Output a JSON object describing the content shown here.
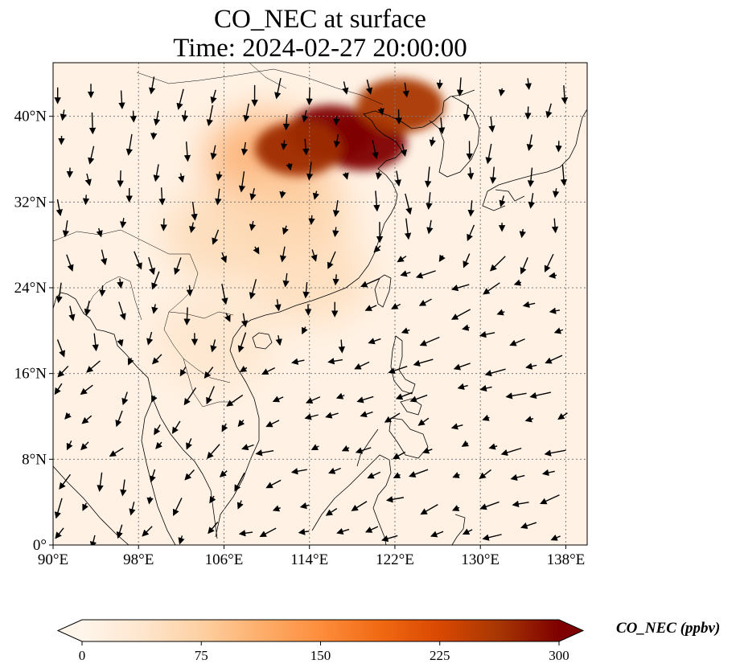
{
  "title": {
    "line1": "CO_NEC at surface",
    "line2": "Time: 2024-02-27 20:00:00"
  },
  "map": {
    "lon_range": [
      90,
      140
    ],
    "lat_range": [
      0,
      45
    ],
    "lon_ticks": [
      {
        "value": 90,
        "label": "90°E"
      },
      {
        "value": 98,
        "label": "98°E"
      },
      {
        "value": 106,
        "label": "106°E"
      },
      {
        "value": 114,
        "label": "114°E"
      },
      {
        "value": 122,
        "label": "122°E"
      },
      {
        "value": 130,
        "label": "130°E"
      },
      {
        "value": 138,
        "label": "138°E"
      }
    ],
    "lat_ticks": [
      {
        "value": 0,
        "label": "0°"
      },
      {
        "value": 8,
        "label": "8°N"
      },
      {
        "value": 16,
        "label": "16°N"
      },
      {
        "value": 24,
        "label": "24°N"
      },
      {
        "value": 32,
        "label": "32°N"
      },
      {
        "value": 40,
        "label": "40°N"
      }
    ],
    "gridlines": true,
    "coastlines": true
  },
  "colorbar": {
    "label": "CO_NEC (ppbv)",
    "min": 0,
    "max": 300,
    "ticks": [
      {
        "value": 0,
        "label": "0"
      },
      {
        "value": 75,
        "label": "75"
      },
      {
        "value": 150,
        "label": "150"
      },
      {
        "value": 225,
        "label": "225"
      },
      {
        "value": 300,
        "label": "300"
      }
    ],
    "colormap": [
      "#fff5eb",
      "#fee6ce",
      "#fdd0a2",
      "#fdae6b",
      "#fd8d3c",
      "#f16913",
      "#d94801",
      "#a63603",
      "#7f0000"
    ],
    "extend": "both"
  },
  "field": {
    "background_value": 8,
    "plumes": [
      {
        "lon": 116.0,
        "lat": 38.5,
        "value": 300
      },
      {
        "lon": 119.0,
        "lat": 37.5,
        "value": 300
      },
      {
        "lon": 113.0,
        "lat": 37.0,
        "value": 270
      },
      {
        "lon": 122.5,
        "lat": 41.0,
        "value": 260
      },
      {
        "lon": 110.0,
        "lat": 36.0,
        "value": 120
      },
      {
        "lon": 112.0,
        "lat": 31.0,
        "value": 75
      },
      {
        "lon": 106.0,
        "lat": 29.0,
        "value": 60
      },
      {
        "lon": 114.0,
        "lat": 25.0,
        "value": 55
      },
      {
        "lon": 105.0,
        "lat": 19.0,
        "value": 40
      }
    ]
  },
  "wind": {
    "regions": [
      {
        "name": "north",
        "lat_min": 30,
        "u": 0.0,
        "v": -1.0
      },
      {
        "name": "china-mainland",
        "lat_min": 18,
        "lat_max": 30,
        "lon_max": 120,
        "u": 0.0,
        "v": -0.6
      },
      {
        "name": "trade-winds",
        "lat_max": 26,
        "lon_min": 108,
        "u": -1.0,
        "v": -0.4
      }
    ]
  }
}
